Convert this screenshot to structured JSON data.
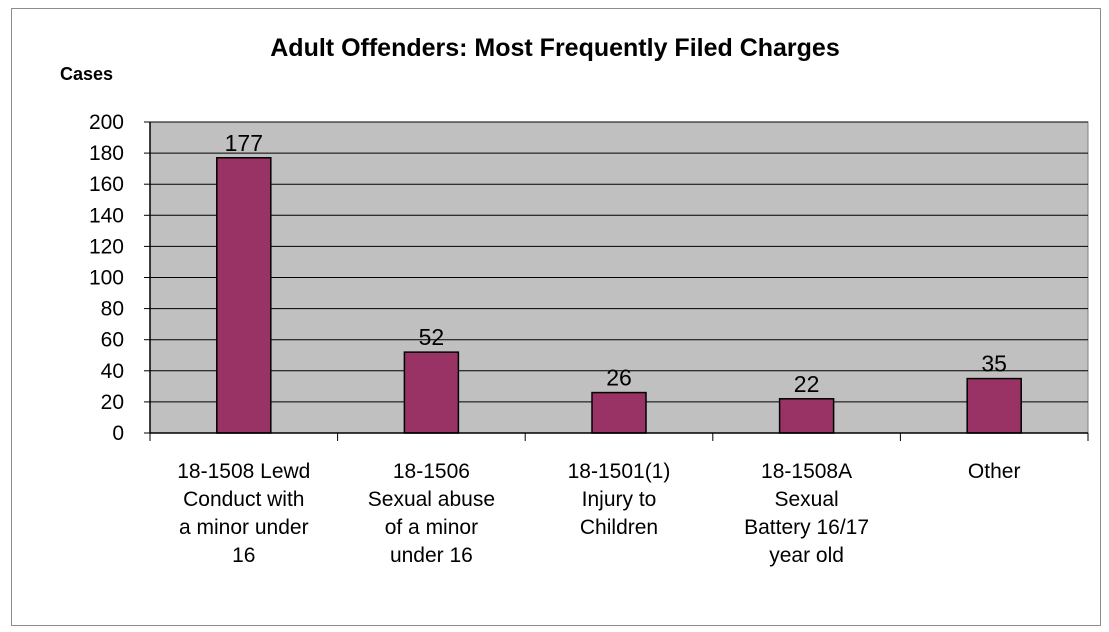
{
  "chart_data": {
    "type": "bar",
    "title": "Adult Offenders: Most Frequently Filed Charges",
    "ylabel": "Cases",
    "xlabel": "",
    "ylim": [
      0,
      200
    ],
    "ytick_step": 20,
    "grid": true,
    "legend": "none",
    "categories": [
      [
        "18-1508 Lewd",
        "Conduct with",
        "a minor under",
        "16"
      ],
      [
        "18-1506",
        "Sexual abuse",
        "of a minor",
        "under 16"
      ],
      [
        "18-1501(1)",
        "Injury to",
        "Children"
      ],
      [
        "18-1508A",
        "Sexual",
        "Battery 16/17",
        "year old"
      ],
      [
        "Other"
      ]
    ],
    "values": [
      177,
      52,
      26,
      22,
      35
    ],
    "colors": {
      "bar": "#993366",
      "plot_background": "#c0c0c0",
      "gridline": "#000000"
    }
  }
}
